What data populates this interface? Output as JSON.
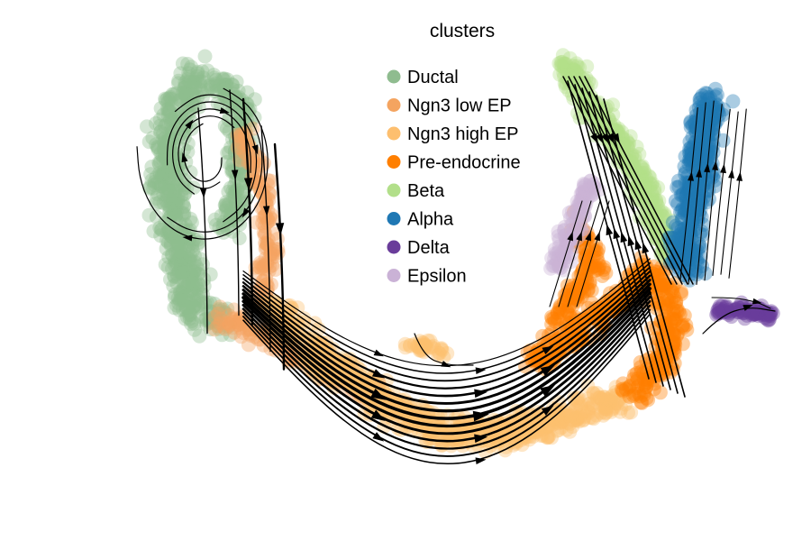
{
  "chart_data": {
    "type": "scatter",
    "title": "clusters",
    "xlabel": "",
    "ylabel": "",
    "axes_visible": false,
    "grid": false,
    "legend_position": "top-center",
    "overlay": "velocity-streamlines",
    "series": [
      {
        "name": "Ductal",
        "color": "#8fbc8f"
      },
      {
        "name": "Ngn3 low EP",
        "color": "#f4a460"
      },
      {
        "name": "Ngn3 high EP",
        "color": "#fdbf6f"
      },
      {
        "name": "Pre-endocrine",
        "color": "#ff7f00"
      },
      {
        "name": "Beta",
        "color": "#b2df8a"
      },
      {
        "name": "Alpha",
        "color": "#1f78b4"
      },
      {
        "name": "Delta",
        "color": "#6a3d9a"
      },
      {
        "name": "Epsilon",
        "color": "#cab2d6"
      }
    ]
  }
}
